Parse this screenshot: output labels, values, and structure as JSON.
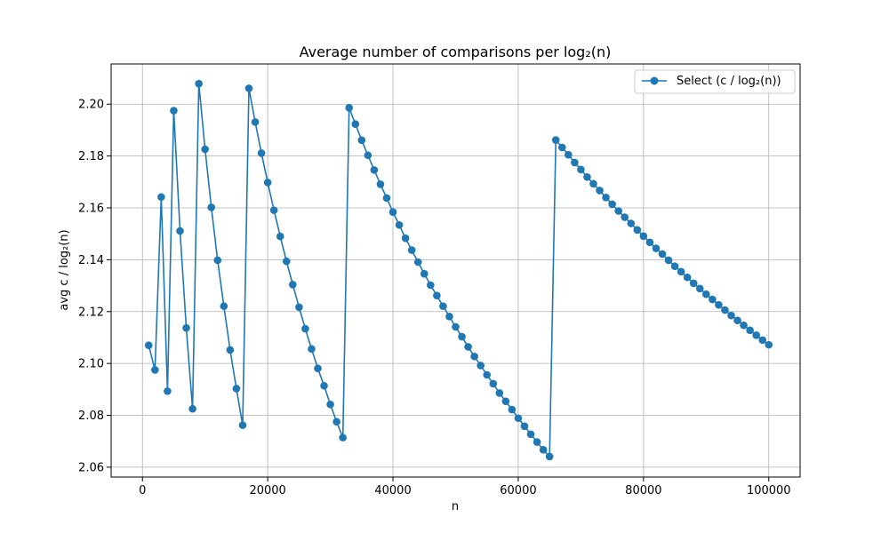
{
  "chart_data": {
    "type": "line",
    "title": "Average number of comparisons per log₂(n)",
    "xlabel": "n",
    "ylabel": "avg c / log₂(n)",
    "xlim": [
      -5000,
      105000
    ],
    "ylim": [
      2.0562,
      2.2155
    ],
    "xticks": [
      0,
      20000,
      40000,
      60000,
      80000,
      100000
    ],
    "xtick_labels": [
      "0",
      "20000",
      "40000",
      "60000",
      "80000",
      "100000"
    ],
    "yticks": [
      2.06,
      2.08,
      2.1,
      2.12,
      2.14,
      2.16,
      2.18,
      2.2
    ],
    "ytick_labels": [
      "2.06",
      "2.08",
      "2.10",
      "2.12",
      "2.14",
      "2.16",
      "2.18",
      "2.20"
    ],
    "grid": true,
    "legend_position": "top-right",
    "series": [
      {
        "name": "Select (c / log₂(n))",
        "color": "#1f77b4",
        "marker": "circle",
        "x": [
          1000,
          2000,
          3000,
          4000,
          5000,
          6000,
          7000,
          8000,
          9000,
          10000,
          11000,
          12000,
          13000,
          14000,
          15000,
          16000,
          17000,
          18000,
          19000,
          20000,
          21000,
          22000,
          23000,
          24000,
          25000,
          26000,
          27000,
          28000,
          29000,
          30000,
          31000,
          32000,
          33000,
          34000,
          35000,
          36000,
          37000,
          38000,
          39000,
          40000,
          41000,
          42000,
          43000,
          44000,
          45000,
          46000,
          47000,
          48000,
          49000,
          50000,
          51000,
          52000,
          53000,
          54000,
          55000,
          56000,
          57000,
          58000,
          59000,
          60000,
          61000,
          62000,
          63000,
          64000,
          65000,
          66000,
          67000,
          68000,
          69000,
          70000,
          71000,
          72000,
          73000,
          74000,
          75000,
          76000,
          77000,
          78000,
          79000,
          80000,
          81000,
          82000,
          83000,
          84000,
          85000,
          86000,
          87000,
          88000,
          89000,
          90000,
          91000,
          92000,
          93000,
          94000,
          95000,
          96000,
          97000,
          98000,
          99000,
          100000
        ],
        "y": [
          2.107,
          2.0975,
          2.1642,
          2.0893,
          2.1975,
          2.1511,
          2.1137,
          2.0825,
          2.2079,
          2.1826,
          2.1602,
          2.1398,
          2.1221,
          2.1052,
          2.0903,
          2.0762,
          2.2061,
          2.1931,
          2.1811,
          2.1698,
          2.1591,
          2.149,
          2.1394,
          2.1304,
          2.1217,
          2.1134,
          2.1056,
          2.0981,
          2.0914,
          2.0842,
          2.0775,
          2.0714,
          2.1986,
          2.1923,
          2.1861,
          2.1803,
          2.1746,
          2.1691,
          2.1638,
          2.1584,
          2.1534,
          2.1483,
          2.1437,
          2.1391,
          2.1346,
          2.1302,
          2.1262,
          2.1221,
          2.1181,
          2.1141,
          2.1103,
          2.1064,
          2.1027,
          2.0992,
          2.0956,
          2.0922,
          2.0886,
          2.0854,
          2.0822,
          2.0789,
          2.0758,
          2.0727,
          2.0697,
          2.0667,
          2.0641,
          2.1862,
          2.1833,
          2.1805,
          2.1775,
          2.1748,
          2.1719,
          2.1693,
          2.1667,
          2.164,
          2.1614,
          2.1588,
          2.1564,
          2.154,
          2.1515,
          2.1491,
          2.1467,
          2.1444,
          2.1422,
          2.1398,
          2.1375,
          2.1354,
          2.1332,
          2.1309,
          2.1289,
          2.1267,
          2.1247,
          2.1226,
          2.1206,
          2.1185,
          2.1166,
          2.1147,
          2.1128,
          2.1109,
          2.109,
          2.1072
        ]
      }
    ]
  }
}
